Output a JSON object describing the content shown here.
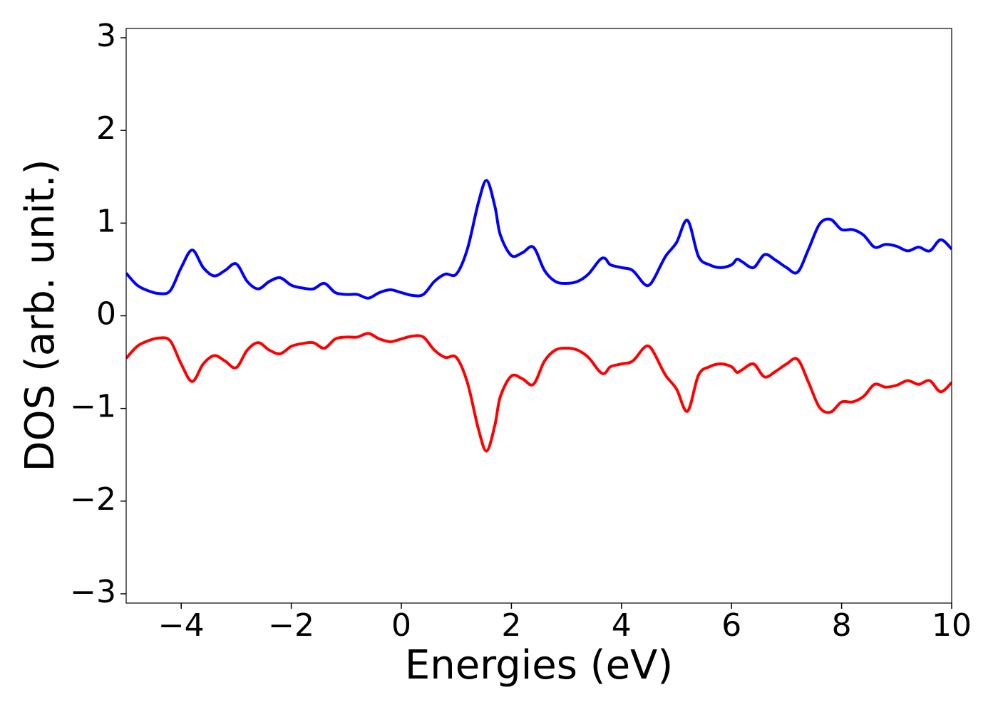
{
  "chart_data": {
    "type": "line",
    "xlabel": "Energies (eV)",
    "ylabel": "DOS (arb. unit.)",
    "x": [
      -5,
      -4.8,
      -4.6,
      -4.4,
      -4.2,
      -4.0,
      -3.8,
      -3.6,
      -3.4,
      -3.2,
      -3.0,
      -2.8,
      -2.6,
      -2.4,
      -2.2,
      -2.0,
      -1.8,
      -1.6,
      -1.4,
      -1.2,
      -1.0,
      -0.8,
      -0.6,
      -0.4,
      -0.2,
      0.0,
      0.2,
      0.4,
      0.6,
      0.8,
      1.0,
      1.2,
      1.4,
      1.55,
      1.7,
      1.8,
      2.0,
      2.2,
      2.4,
      2.6,
      2.8,
      3.0,
      3.2,
      3.4,
      3.6,
      3.7,
      3.8,
      4.0,
      4.2,
      4.4,
      4.5,
      4.6,
      4.8,
      5.0,
      5.2,
      5.4,
      5.6,
      5.8,
      6.0,
      6.1,
      6.2,
      6.4,
      6.6,
      6.8,
      7.0,
      7.2,
      7.4,
      7.6,
      7.8,
      8.0,
      8.2,
      8.4,
      8.6,
      8.8,
      9.0,
      9.2,
      9.4,
      9.6,
      9.8,
      10.0
    ],
    "series": [
      {
        "color": "#0000ff",
        "values": [
          0.46,
          0.33,
          0.27,
          0.24,
          0.27,
          0.52,
          0.71,
          0.52,
          0.43,
          0.49,
          0.56,
          0.37,
          0.29,
          0.37,
          0.41,
          0.33,
          0.3,
          0.29,
          0.35,
          0.25,
          0.23,
          0.23,
          0.19,
          0.25,
          0.28,
          0.25,
          0.22,
          0.23,
          0.37,
          0.45,
          0.45,
          0.72,
          1.22,
          1.46,
          1.18,
          0.87,
          0.65,
          0.68,
          0.74,
          0.49,
          0.37,
          0.35,
          0.37,
          0.45,
          0.6,
          0.62,
          0.55,
          0.52,
          0.49,
          0.35,
          0.33,
          0.41,
          0.64,
          0.79,
          1.03,
          0.64,
          0.55,
          0.52,
          0.55,
          0.61,
          0.58,
          0.52,
          0.66,
          0.6,
          0.52,
          0.47,
          0.72,
          0.99,
          1.04,
          0.93,
          0.93,
          0.87,
          0.74,
          0.77,
          0.75,
          0.7,
          0.74,
          0.7,
          0.82,
          0.72
        ]
      },
      {
        "color": "#ff0000",
        "values": [
          -0.46,
          -0.33,
          -0.27,
          -0.24,
          -0.27,
          -0.52,
          -0.71,
          -0.52,
          -0.43,
          -0.49,
          -0.56,
          -0.37,
          -0.29,
          -0.37,
          -0.41,
          -0.33,
          -0.3,
          -0.29,
          -0.35,
          -0.25,
          -0.23,
          -0.23,
          -0.19,
          -0.25,
          -0.28,
          -0.25,
          -0.22,
          -0.23,
          -0.37,
          -0.45,
          -0.45,
          -0.72,
          -1.22,
          -1.46,
          -1.18,
          -0.87,
          -0.65,
          -0.68,
          -0.74,
          -0.49,
          -0.37,
          -0.35,
          -0.37,
          -0.45,
          -0.6,
          -0.62,
          -0.55,
          -0.52,
          -0.49,
          -0.35,
          -0.33,
          -0.41,
          -0.64,
          -0.79,
          -1.03,
          -0.64,
          -0.55,
          -0.52,
          -0.55,
          -0.61,
          -0.58,
          -0.52,
          -0.66,
          -0.6,
          -0.52,
          -0.47,
          -0.72,
          -0.99,
          -1.04,
          -0.93,
          -0.93,
          -0.87,
          -0.74,
          -0.77,
          -0.75,
          -0.7,
          -0.74,
          -0.7,
          -0.82,
          -0.72
        ]
      }
    ],
    "xlim": [
      -5,
      10
    ],
    "xticks": [
      {
        "value": -4,
        "label": "−4"
      },
      {
        "value": -2,
        "label": "−2"
      },
      0,
      2,
      4,
      6,
      8,
      10
    ],
    "ylim": [
      -3.1,
      3.1
    ],
    "yticks": [
      {
        "value": -3,
        "label": "−3"
      },
      {
        "value": -2,
        "label": "−2"
      },
      {
        "value": -1,
        "label": "−1"
      },
      0,
      1,
      2,
      3
    ],
    "grid": false
  }
}
